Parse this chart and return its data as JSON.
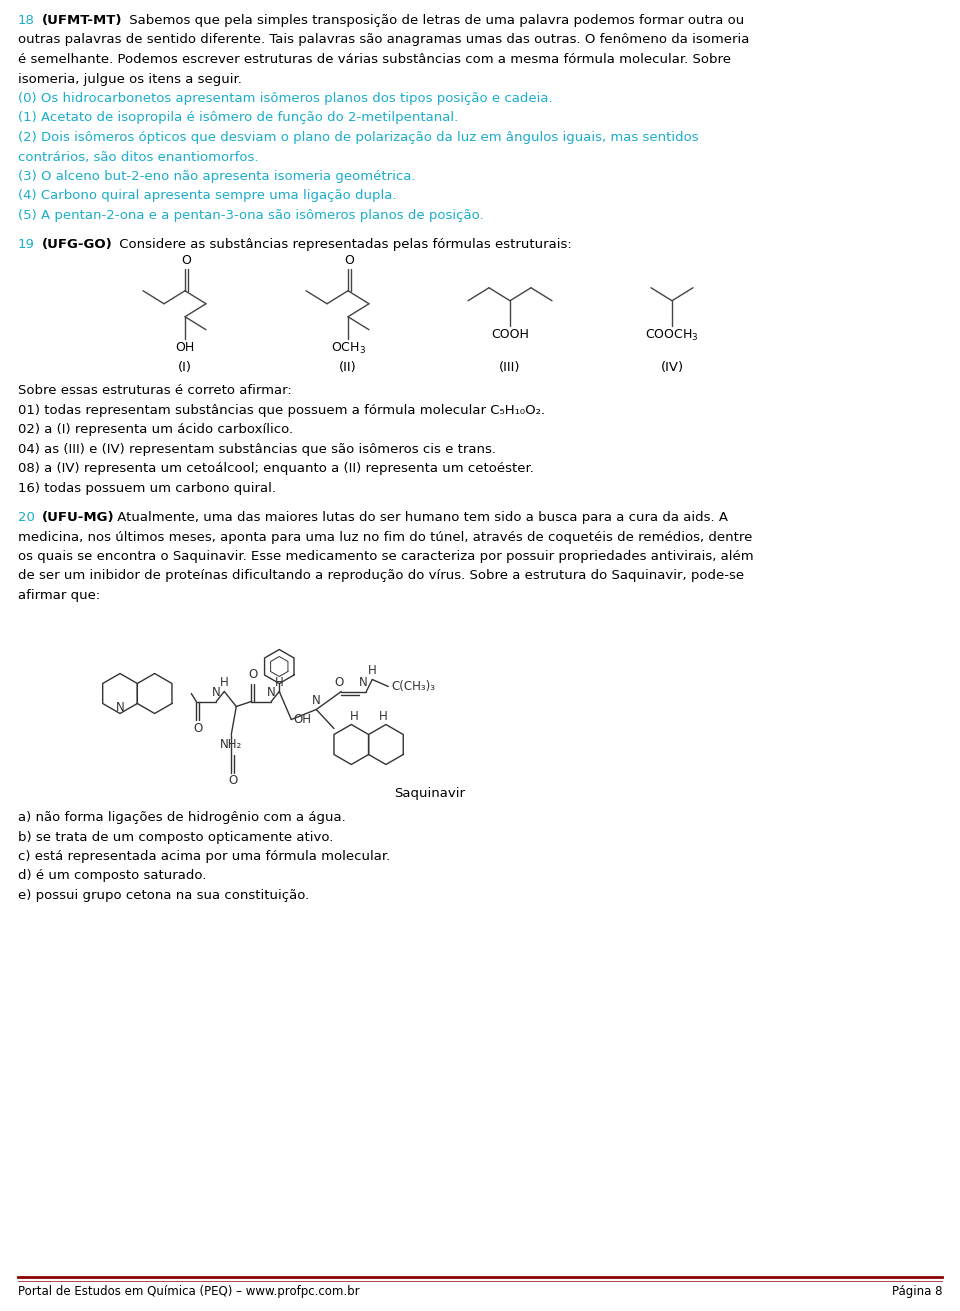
{
  "bg_color": "#ffffff",
  "cyan": "#1aadcc",
  "black": "#000000",
  "gray": "#444444",
  "dark_red": "#8B0000",
  "lh": 19.5,
  "ml": 18,
  "fs": 9.5,
  "fs_small": 8.5,
  "q18_num": "18",
  "q18_src": "(UFMT-MT)",
  "q18_intro": [
    " Sabemos que pela simples transposição de letras de uma palavra podemos formar outra ou",
    "outras palavras de sentido diferente. Tais palavras são anagramas umas das outras. O fenômeno da isomeria",
    "é semelhante. Podemos escrever estruturas de várias substâncias com a mesma fórmula molecular. Sobre",
    "isomeria, julgue os itens a seguir."
  ],
  "q18_items": [
    "(0) Os hidrocarbonetos apresentam isômeros planos dos tipos posição e cadeia.",
    "(1) Acetato de isopropila é isômero de função do 2-metilpentanal.",
    "(2) Dois isômeros ópticos que desviam o plano de polarização da luz em ângulos iguais, mas sentidos",
    "contrários, são ditos enantiomorfos.",
    "(3) O alceno but-2-eno não apresenta isomeria geométrica.",
    "(4) Carbono quiral apresenta sempre uma ligação dupla.",
    "(5) A pentan-2-ona e a pentan-3-ona são isômeros planos de posição."
  ],
  "q19_num": "19",
  "q19_src": "(UFG-GO)",
  "q19_intro": " Considere as substâncias representadas pelas fórmulas estruturais:",
  "q19_items": [
    "Sobre essas estruturas é correto afirmar:",
    "01) todas representam substâncias que possuem a fórmula molecular C₅H₁₀O₂.",
    "02) a (I) representa um ácido carboxílico.",
    "04) as (III) e (IV) representam substâncias que são isômeros cis e trans.",
    "08) a (IV) representa um cetoálcool; enquanto a (II) representa um cetoéster.",
    "16) todas possuem um carbono quiral."
  ],
  "q20_num": "20",
  "q20_src": "(UFU-MG)",
  "q20_intro": [
    " Atualmente, uma das maiores lutas do ser humano tem sido a busca para a cura da aids. A",
    "medicina, nos últimos meses, aponta para uma luz no fim do túnel, através de coquetéis de remédios, dentre",
    "os quais se encontra o Saquinavir. Esse medicamento se caracteriza por possuir propriedades antivirais, além",
    "de ser um inibidor de proteínas dificultando a reprodução do vírus. Sobre a estrutura do Saquinavir, pode-se",
    "afirmar que:"
  ],
  "q20_items": [
    "a) não forma ligações de hidrogênio com a água.",
    "b) se trata de um composto opticamente ativo.",
    "c) está representada acima por uma fórmula molecular.",
    "d) é um composto saturado.",
    "e) possui grupo cetona na sua constituição."
  ],
  "footer_left": "Portal de Estudos em Química (PEQ) – www.profpc.com.br",
  "footer_right": "Página 8"
}
